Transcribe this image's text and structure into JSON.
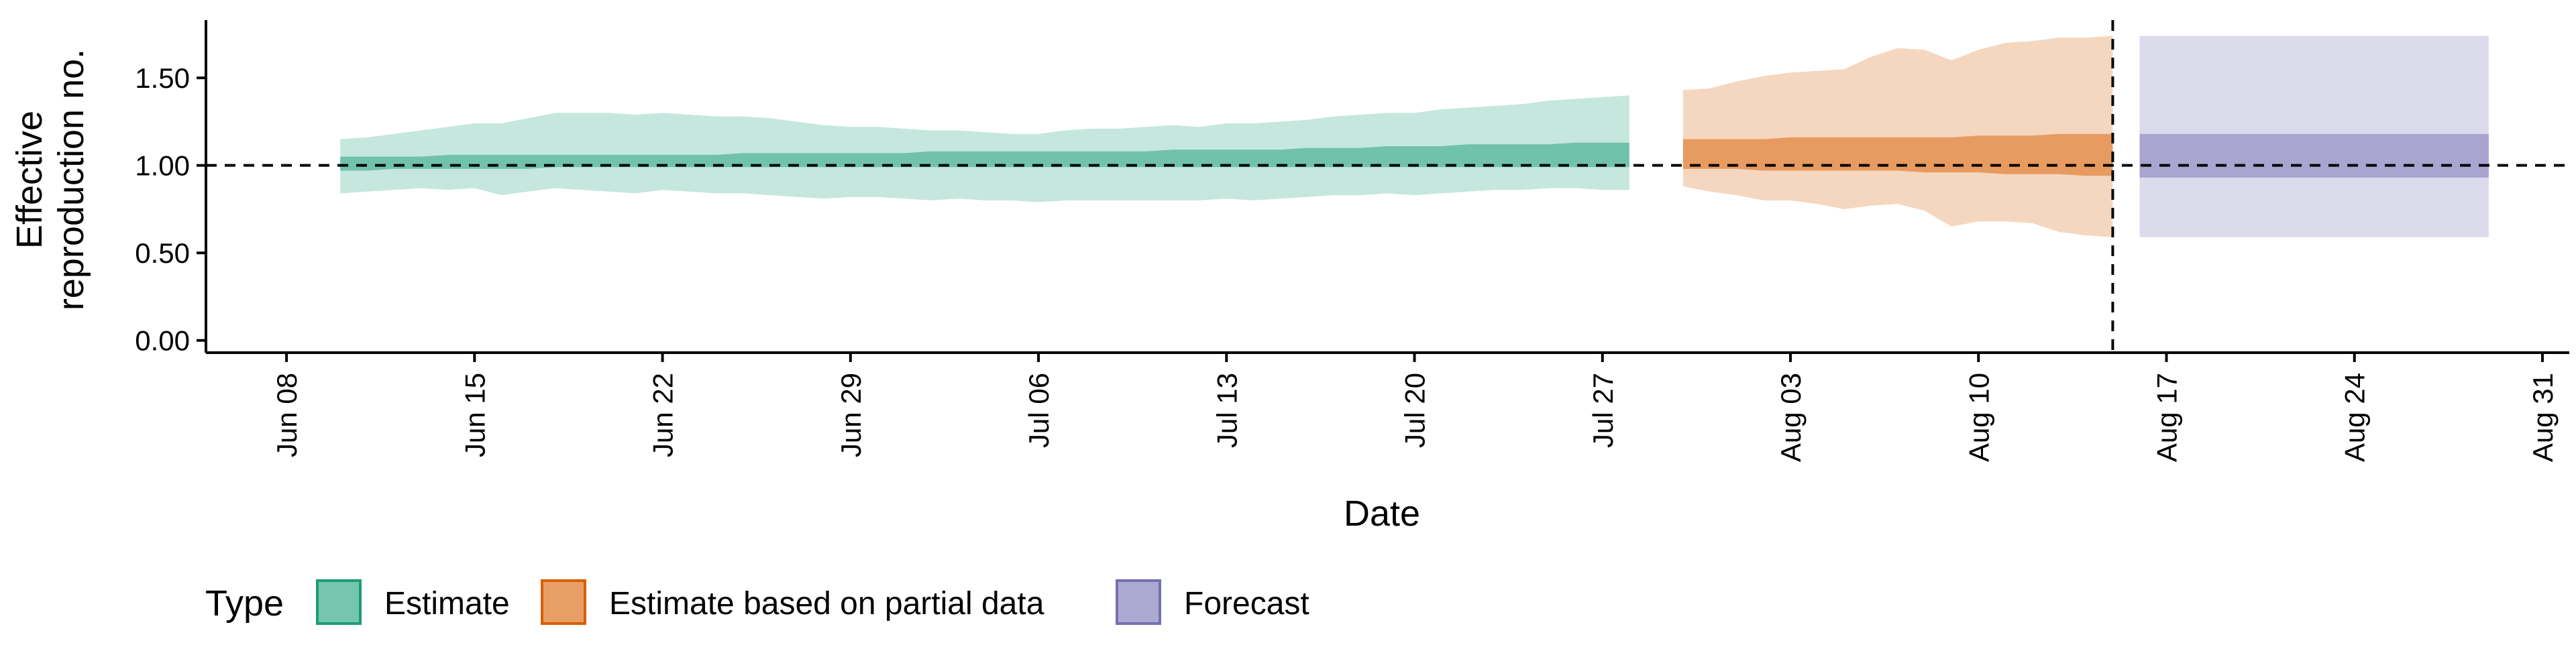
{
  "chart_data": {
    "type": "area",
    "ylabel_lines": [
      "Effective",
      "reproduction no."
    ],
    "xlabel": "Date",
    "ylim": [
      0,
      1.8
    ],
    "xlim": [
      "2020-06-05",
      "2020-09-01"
    ],
    "y_ticks": [
      0.0,
      0.5,
      1.0,
      1.5
    ],
    "y_tick_labels": [
      "0.00",
      "0.50",
      "1.00",
      "1.50"
    ],
    "x_ticks": [
      "2020-06-08",
      "2020-06-15",
      "2020-06-22",
      "2020-06-29",
      "2020-07-06",
      "2020-07-13",
      "2020-07-20",
      "2020-07-27",
      "2020-08-03",
      "2020-08-10",
      "2020-08-17",
      "2020-08-24",
      "2020-08-31"
    ],
    "x_tick_labels": [
      "Jun 08",
      "Jun 15",
      "Jun 22",
      "Jun 29",
      "Jul 06",
      "Jul 13",
      "Jul 20",
      "Jul 27",
      "Aug 03",
      "Aug 10",
      "Aug 17",
      "Aug 24",
      "Aug 31"
    ],
    "reference_line_y": 1.0,
    "vline_date": "2020-08-15",
    "grid": false,
    "legend": {
      "title": "Type",
      "position": "bottom",
      "items": [
        {
          "label": "Estimate",
          "color": "#1b9e77"
        },
        {
          "label": "Estimate based on partial data",
          "color": "#d95f02"
        },
        {
          "label": "Forecast",
          "color": "#7570b3"
        }
      ]
    },
    "series": [
      {
        "name": "Estimate",
        "color": "#1b9e77",
        "x": [
          "2020-06-10",
          "2020-06-11",
          "2020-06-12",
          "2020-06-13",
          "2020-06-14",
          "2020-06-15",
          "2020-06-16",
          "2020-06-17",
          "2020-06-18",
          "2020-06-19",
          "2020-06-20",
          "2020-06-21",
          "2020-06-22",
          "2020-06-23",
          "2020-06-24",
          "2020-06-25",
          "2020-06-26",
          "2020-06-27",
          "2020-06-28",
          "2020-06-29",
          "2020-06-30",
          "2020-07-01",
          "2020-07-02",
          "2020-07-03",
          "2020-07-04",
          "2020-07-05",
          "2020-07-06",
          "2020-07-07",
          "2020-07-08",
          "2020-07-09",
          "2020-07-10",
          "2020-07-11",
          "2020-07-12",
          "2020-07-13",
          "2020-07-14",
          "2020-07-15",
          "2020-07-16",
          "2020-07-17",
          "2020-07-18",
          "2020-07-19",
          "2020-07-20",
          "2020-07-21",
          "2020-07-22",
          "2020-07-23",
          "2020-07-24",
          "2020-07-25",
          "2020-07-26",
          "2020-07-27",
          "2020-07-28"
        ],
        "lower_90": [
          0.84,
          0.85,
          0.86,
          0.87,
          0.86,
          0.87,
          0.83,
          0.85,
          0.87,
          0.86,
          0.85,
          0.84,
          0.86,
          0.85,
          0.84,
          0.84,
          0.83,
          0.82,
          0.81,
          0.82,
          0.82,
          0.81,
          0.8,
          0.81,
          0.8,
          0.8,
          0.79,
          0.8,
          0.8,
          0.8,
          0.8,
          0.8,
          0.8,
          0.81,
          0.8,
          0.81,
          0.82,
          0.83,
          0.83,
          0.84,
          0.83,
          0.84,
          0.85,
          0.86,
          0.86,
          0.87,
          0.87,
          0.86,
          0.86
        ],
        "upper_90": [
          1.15,
          1.16,
          1.18,
          1.2,
          1.22,
          1.24,
          1.24,
          1.27,
          1.3,
          1.3,
          1.3,
          1.29,
          1.3,
          1.29,
          1.28,
          1.28,
          1.27,
          1.25,
          1.23,
          1.22,
          1.22,
          1.21,
          1.2,
          1.2,
          1.19,
          1.18,
          1.18,
          1.2,
          1.21,
          1.21,
          1.22,
          1.23,
          1.22,
          1.24,
          1.24,
          1.25,
          1.26,
          1.28,
          1.29,
          1.3,
          1.3,
          1.32,
          1.33,
          1.34,
          1.35,
          1.37,
          1.38,
          1.39,
          1.4
        ],
        "lower_50": [
          0.97,
          0.97,
          0.98,
          0.98,
          0.98,
          0.98,
          0.98,
          0.98,
          0.99,
          0.99,
          0.99,
          0.99,
          0.99,
          0.99,
          0.99,
          0.99,
          0.99,
          0.99,
          0.99,
          0.99,
          0.99,
          0.99,
          0.99,
          0.99,
          0.99,
          0.99,
          0.99,
          0.99,
          0.99,
          0.99,
          0.99,
          0.99,
          0.99,
          0.99,
          0.99,
          0.99,
          0.99,
          0.99,
          0.99,
          0.99,
          0.99,
          0.99,
          0.99,
          0.99,
          0.99,
          0.99,
          0.99,
          0.99,
          0.99
        ],
        "upper_50": [
          1.05,
          1.05,
          1.05,
          1.05,
          1.06,
          1.06,
          1.06,
          1.06,
          1.06,
          1.06,
          1.06,
          1.06,
          1.06,
          1.06,
          1.06,
          1.07,
          1.07,
          1.07,
          1.07,
          1.07,
          1.07,
          1.07,
          1.08,
          1.08,
          1.08,
          1.08,
          1.08,
          1.08,
          1.08,
          1.08,
          1.08,
          1.09,
          1.09,
          1.09,
          1.09,
          1.09,
          1.1,
          1.1,
          1.1,
          1.11,
          1.11,
          1.11,
          1.12,
          1.12,
          1.12,
          1.12,
          1.13,
          1.13,
          1.13
        ]
      },
      {
        "name": "Estimate based on partial data",
        "color": "#d95f02",
        "x": [
          "2020-07-30",
          "2020-07-31",
          "2020-08-01",
          "2020-08-02",
          "2020-08-03",
          "2020-08-04",
          "2020-08-05",
          "2020-08-06",
          "2020-08-07",
          "2020-08-08",
          "2020-08-09",
          "2020-08-10",
          "2020-08-11",
          "2020-08-12",
          "2020-08-13",
          "2020-08-14",
          "2020-08-15"
        ],
        "lower_90": [
          0.88,
          0.85,
          0.83,
          0.8,
          0.8,
          0.78,
          0.75,
          0.77,
          0.78,
          0.74,
          0.65,
          0.68,
          0.68,
          0.67,
          0.62,
          0.6,
          0.59
        ],
        "upper_90": [
          1.43,
          1.44,
          1.48,
          1.51,
          1.53,
          1.54,
          1.55,
          1.62,
          1.67,
          1.66,
          1.6,
          1.66,
          1.7,
          1.71,
          1.73,
          1.73,
          1.74
        ],
        "lower_50": [
          0.98,
          0.98,
          0.98,
          0.97,
          0.97,
          0.97,
          0.97,
          0.97,
          0.97,
          0.96,
          0.96,
          0.96,
          0.95,
          0.95,
          0.95,
          0.94,
          0.94
        ],
        "upper_50": [
          1.15,
          1.15,
          1.15,
          1.15,
          1.16,
          1.16,
          1.16,
          1.16,
          1.16,
          1.16,
          1.16,
          1.17,
          1.17,
          1.17,
          1.18,
          1.18,
          1.18
        ]
      },
      {
        "name": "Forecast",
        "color": "#7570b3",
        "x": [
          "2020-08-16",
          "2020-08-29"
        ],
        "lower_90": [
          0.59,
          0.59
        ],
        "upper_90": [
          1.74,
          1.74
        ],
        "lower_50": [
          0.93,
          0.93
        ],
        "upper_50": [
          1.18,
          1.18
        ]
      }
    ]
  }
}
